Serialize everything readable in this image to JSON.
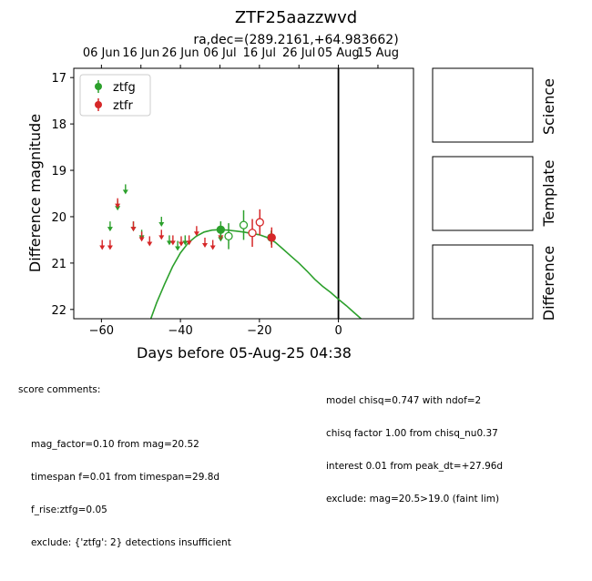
{
  "chart_data": {
    "type": "scatter",
    "title": "ZTF25aazzwvd",
    "subtitle": "ra,dec=(289.2161,+64.983662)",
    "xlabel": "Days before 05-Aug-25 04:38",
    "ylabel": "Difference magnitude",
    "xlim": [
      -67,
      19
    ],
    "ylim": [
      22.2,
      16.8
    ],
    "y_inverted": true,
    "x_ticks": [
      -60,
      -40,
      -20,
      0
    ],
    "x_tick_labels": [
      "−60",
      "−40",
      "−20",
      "0"
    ],
    "y_ticks": [
      17,
      18,
      19,
      20,
      21,
      22
    ],
    "y_tick_labels": [
      "17",
      "18",
      "19",
      "20",
      "21",
      "22"
    ],
    "top_axis_ticks": [
      {
        "x": -60,
        "label": "06 Jun"
      },
      {
        "x": -50,
        "label": "16 Jun"
      },
      {
        "x": -40,
        "label": "26 Jun"
      },
      {
        "x": -30,
        "label": "06 Jul"
      },
      {
        "x": -20,
        "label": "16 Jul"
      },
      {
        "x": -10,
        "label": "26 Jul"
      },
      {
        "x": 0,
        "label": "05 Aug"
      },
      {
        "x": 10,
        "label": "15 Aug"
      }
    ],
    "grid": false,
    "legend_position": "top-left",
    "reference_line_x": 0,
    "series": [
      {
        "name": "ztfg",
        "color": "#2ca02c",
        "detections": [
          {
            "x": -29.8,
            "y": 20.28,
            "err": 0.18,
            "filled": true
          },
          {
            "x": -27.8,
            "y": 20.42,
            "err": 0.28,
            "filled": false
          },
          {
            "x": -24.0,
            "y": 20.18,
            "err": 0.32,
            "filled": false
          },
          {
            "x": -17.0,
            "y": 20.45,
            "err": 0.15,
            "filled": true
          }
        ],
        "upper_limits": [
          {
            "x": -57.8,
            "y": 20.2
          },
          {
            "x": -55.9,
            "y": 19.75
          },
          {
            "x": -53.9,
            "y": 19.4
          },
          {
            "x": -51.9,
            "y": 20.2
          },
          {
            "x": -49.8,
            "y": 20.38
          },
          {
            "x": -44.8,
            "y": 20.1
          },
          {
            "x": -42.8,
            "y": 20.5
          },
          {
            "x": -40.7,
            "y": 20.62
          },
          {
            "x": -38.8,
            "y": 20.5
          },
          {
            "x": -29.8,
            "y": 20.42
          }
        ],
        "model_curve": {
          "x": [
            -47.5,
            -46,
            -44,
            -42,
            -40,
            -38,
            -36,
            -34,
            -32,
            -30,
            -28,
            -26,
            -24,
            -22,
            -20,
            -18,
            -16,
            -14,
            -12,
            -10,
            -8,
            -6,
            -4,
            -2,
            0,
            2,
            4,
            6
          ],
          "y": [
            22.2,
            21.85,
            21.45,
            21.08,
            20.78,
            20.56,
            20.42,
            20.33,
            20.29,
            20.28,
            20.29,
            20.31,
            20.33,
            20.36,
            20.39,
            20.45,
            20.55,
            20.7,
            20.85,
            21.0,
            21.17,
            21.35,
            21.5,
            21.63,
            21.78,
            21.92,
            22.07,
            22.22
          ]
        }
      },
      {
        "name": "ztfr",
        "color": "#d62728",
        "detections": [
          {
            "x": -21.8,
            "y": 20.35,
            "err": 0.3,
            "filled": false
          },
          {
            "x": -19.9,
            "y": 20.12,
            "err": 0.28,
            "filled": false
          },
          {
            "x": -16.9,
            "y": 20.45,
            "err": 0.22,
            "filled": true
          }
        ],
        "upper_limits": [
          {
            "x": -59.8,
            "y": 20.6
          },
          {
            "x": -57.8,
            "y": 20.6
          },
          {
            "x": -55.9,
            "y": 19.7
          },
          {
            "x": -51.9,
            "y": 20.2
          },
          {
            "x": -49.8,
            "y": 20.42
          },
          {
            "x": -47.8,
            "y": 20.52
          },
          {
            "x": -44.8,
            "y": 20.38
          },
          {
            "x": -41.9,
            "y": 20.5
          },
          {
            "x": -39.8,
            "y": 20.52
          },
          {
            "x": -37.8,
            "y": 20.5
          },
          {
            "x": -35.9,
            "y": 20.3
          },
          {
            "x": -33.8,
            "y": 20.55
          },
          {
            "x": -31.8,
            "y": 20.6
          },
          {
            "x": -29.8,
            "y": 20.38
          }
        ]
      }
    ]
  },
  "stamps": {
    "science_label": "Science",
    "template_label": "Template",
    "difference_label": "Difference"
  },
  "score_comments": {
    "heading": "score comments:",
    "lines": [
      "mag_factor=0.10 from mag=20.52",
      "timespan f=0.01 from timespan=29.8d",
      "f_rise:ztfg=0.05",
      "exclude: {'ztfg': 2} detections insufficient"
    ]
  },
  "model_comments": {
    "lines": [
      "model chisq=0.747 with ndof=2",
      "chisq factor 1.00 from chisq_nu0.37",
      "interest 0.01 from peak_dt=+27.96d",
      "exclude: mag=20.5>19.0 (faint lim)"
    ]
  }
}
